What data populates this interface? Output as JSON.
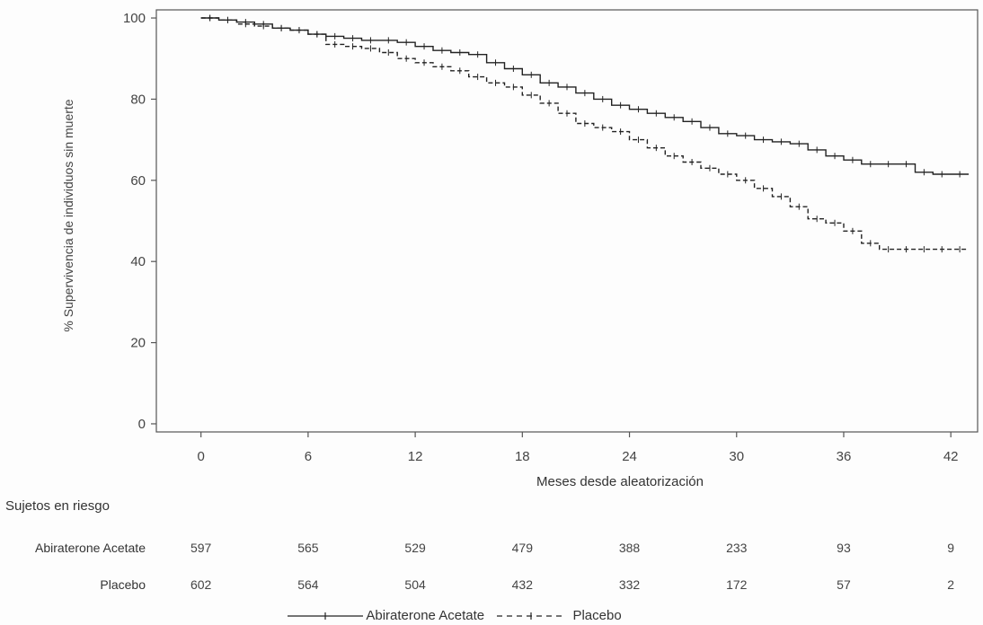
{
  "chart_data": {
    "type": "line",
    "xlabel": "Meses desde aleatorización",
    "ylabel": "% Supervivencia de individuos sin muerte",
    "x_ticks": [
      0,
      6,
      12,
      18,
      24,
      30,
      36,
      42
    ],
    "y_ticks": [
      0,
      20,
      40,
      60,
      80,
      100
    ],
    "xlim": [
      -2.5,
      43.5
    ],
    "ylim": [
      -2,
      102
    ],
    "grid": false,
    "series": [
      {
        "name": "Abiraterone Acetate",
        "style": "solid",
        "color": "#222222",
        "x": [
          0,
          1,
          2,
          3,
          4,
          5,
          6,
          7,
          8,
          9,
          10,
          11,
          12,
          13,
          14,
          15,
          16,
          17,
          18,
          19,
          20,
          21,
          22,
          23,
          24,
          25,
          26,
          27,
          28,
          29,
          30,
          31,
          32,
          33,
          34,
          35,
          36,
          37,
          38,
          39,
          40,
          41,
          42,
          43
        ],
        "y": [
          100,
          99.5,
          99,
          98.5,
          97.5,
          97,
          96,
          95.5,
          95,
          94.5,
          94.5,
          94,
          93,
          92,
          91.5,
          91,
          89,
          87.5,
          86,
          84,
          83,
          81.5,
          80,
          78.5,
          77.5,
          76.5,
          75.5,
          74.5,
          73,
          71.5,
          71,
          70,
          69.5,
          69,
          67.5,
          66,
          65,
          64,
          64,
          64,
          62,
          61.5,
          61.5,
          61.5
        ]
      },
      {
        "name": "Placebo",
        "style": "dashed",
        "color": "#222222",
        "x": [
          0,
          1,
          2,
          3,
          4,
          5,
          6,
          7,
          8,
          9,
          10,
          11,
          12,
          13,
          14,
          15,
          16,
          17,
          18,
          19,
          20,
          21,
          22,
          23,
          24,
          25,
          26,
          27,
          28,
          29,
          30,
          31,
          32,
          33,
          34,
          35,
          36,
          37,
          38,
          39,
          40,
          41,
          42,
          43
        ],
        "y": [
          100,
          99.5,
          98.5,
          98,
          97.5,
          97,
          96,
          93.5,
          93,
          92.5,
          91.5,
          90,
          89,
          88,
          87,
          85.5,
          84,
          83,
          81,
          79,
          76.5,
          74,
          73,
          72,
          70,
          68,
          66,
          64.5,
          63,
          61.5,
          60,
          58,
          56,
          53.5,
          50.5,
          49.5,
          47.5,
          44.5,
          43,
          43,
          43,
          43,
          43,
          43
        ]
      }
    ]
  },
  "risk_table": {
    "title": "Sujetos en riesgo",
    "rows": [
      {
        "label": "Abiraterone Acetate",
        "values": [
          "597",
          "565",
          "529",
          "479",
          "388",
          "233",
          "93",
          "9"
        ]
      },
      {
        "label": "Placebo",
        "values": [
          "602",
          "564",
          "504",
          "432",
          "332",
          "172",
          "57",
          "2"
        ]
      }
    ]
  }
}
